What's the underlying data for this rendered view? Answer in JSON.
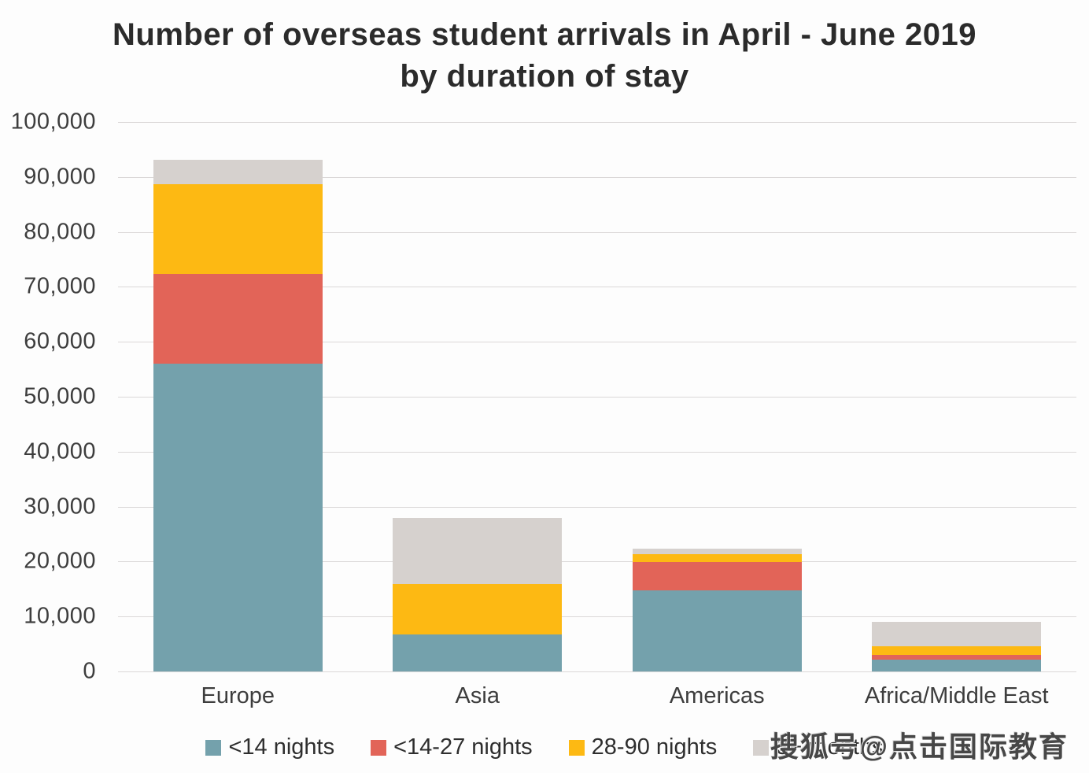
{
  "header": {
    "title_line1": "Number of overseas student arrivals in April - June 2019",
    "title_line2": "by duration of stay"
  },
  "chart_data": {
    "type": "bar",
    "stacked": true,
    "title": "Number of overseas student arrivals in April - June 2019 by duration of stay",
    "categories": [
      "Europe",
      "Asia",
      "Americas",
      "Africa/Middle East"
    ],
    "series": [
      {
        "name": "<14 nights",
        "color": "#74A1AC",
        "values": [
          56000,
          6800,
          14800,
          2200
        ]
      },
      {
        "name": "<14-27 nights",
        "color": "#E26458",
        "values": [
          16300,
          0,
          5100,
          800
        ]
      },
      {
        "name": "28-90 nights",
        "color": "#FDB913",
        "values": [
          16400,
          9100,
          1400,
          1600
        ]
      },
      {
        "name": "3+ months",
        "color": "#D6D1CE",
        "values": [
          4400,
          12000,
          1000,
          4400
        ]
      }
    ],
    "totals": [
      93100,
      27900,
      22300,
      9000
    ],
    "ylim": [
      0,
      100000
    ],
    "ytick_step": 10000,
    "ytick_labels_bottom_to_top": [
      "0",
      "10,000",
      "20,000",
      "30,000",
      "40,000",
      "50,000",
      "60,000",
      "70,000",
      "80,000",
      "90,000",
      "100,000"
    ],
    "xlabel": "",
    "ylabel": "",
    "grid": true,
    "gridline_color": "#DBD8D8",
    "legend_position": "bottom"
  },
  "watermark": {
    "text": "搜狐号@点击国际教育"
  },
  "colors": {
    "background": "#FDFDFD",
    "title_text": "#2B2B2B",
    "axis_text": "#3D3D3D"
  }
}
